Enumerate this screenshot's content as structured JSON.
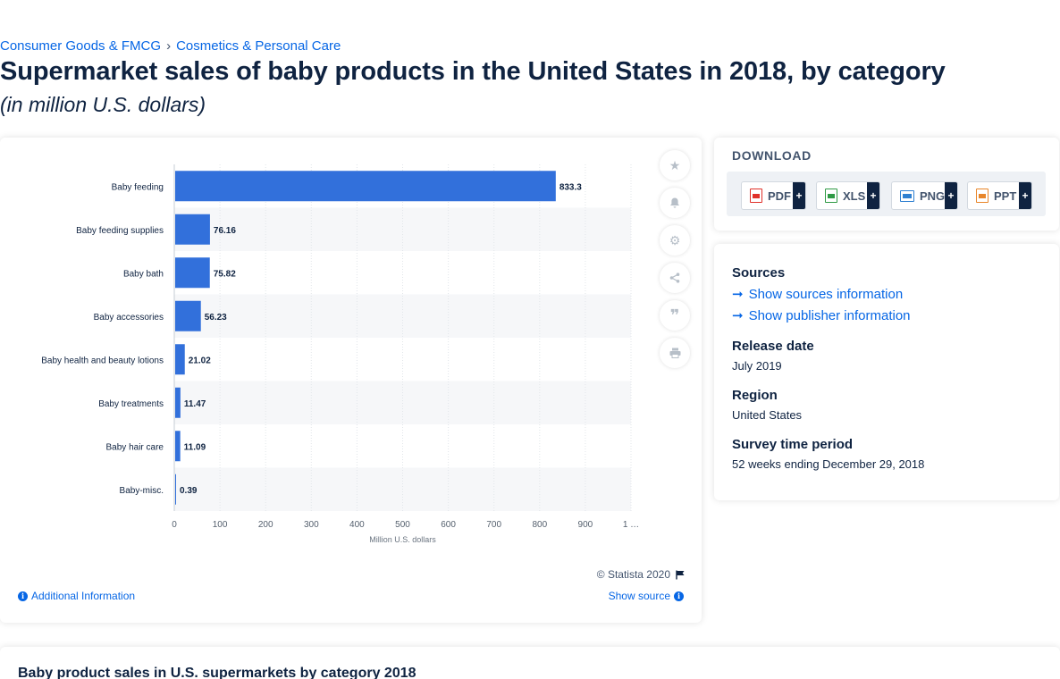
{
  "breadcrumb": {
    "items": [
      "Consumer Goods & FMCG",
      "Cosmetics & Personal Care"
    ],
    "separator": "›"
  },
  "title": "Supermarket sales of baby products in the United States in 2018, by category",
  "subtitle": "(in million U.S. dollars)",
  "chart_data": {
    "type": "bar",
    "orientation": "horizontal",
    "categories": [
      "Baby feeding",
      "Baby feeding supplies",
      "Baby bath",
      "Baby accessories",
      "Baby health and beauty lotions",
      "Baby treatments",
      "Baby hair care",
      "Baby-misc."
    ],
    "values": [
      833.3,
      76.16,
      75.82,
      56.23,
      21.02,
      11.47,
      11.09,
      0.39
    ],
    "value_labels": [
      "833.3",
      "76.16",
      "75.82",
      "56.23",
      "21.02",
      "11.47",
      "11.09",
      "0.39"
    ],
    "xlim": [
      0,
      1000
    ],
    "xticks": [
      "0",
      "100",
      "200",
      "300",
      "400",
      "500",
      "600",
      "700",
      "800",
      "900",
      "1 …"
    ],
    "xlabel": "Million U.S. dollars",
    "ylabel": "",
    "bar_color": "#3270db",
    "grid": true
  },
  "toolbar": {
    "icons": [
      "star-icon",
      "bell-icon",
      "gear-icon",
      "share-icon",
      "quote-icon",
      "print-icon"
    ]
  },
  "footer": {
    "copyright": "© Statista 2020",
    "additional_info": "Additional Information",
    "show_source": "Show source"
  },
  "download": {
    "title": "DOWNLOAD",
    "buttons": [
      {
        "label": "PDF",
        "color": "#e0312a"
      },
      {
        "label": "XLS",
        "color": "#2f9a45"
      },
      {
        "label": "PNG",
        "color": "#2f80d1"
      },
      {
        "label": "PPT",
        "color": "#e8862a"
      }
    ],
    "plus": "+"
  },
  "info": {
    "sources_label": "Sources",
    "show_sources": "Show sources information",
    "show_publisher": "Show publisher information",
    "release_label": "Release date",
    "release_value": "July 2019",
    "region_label": "Region",
    "region_value": "United States",
    "survey_label": "Survey time period",
    "survey_value": "52 weeks ending December 29, 2018"
  },
  "bottom": {
    "title": "Baby product sales in U.S. supermarkets by category 2018"
  }
}
